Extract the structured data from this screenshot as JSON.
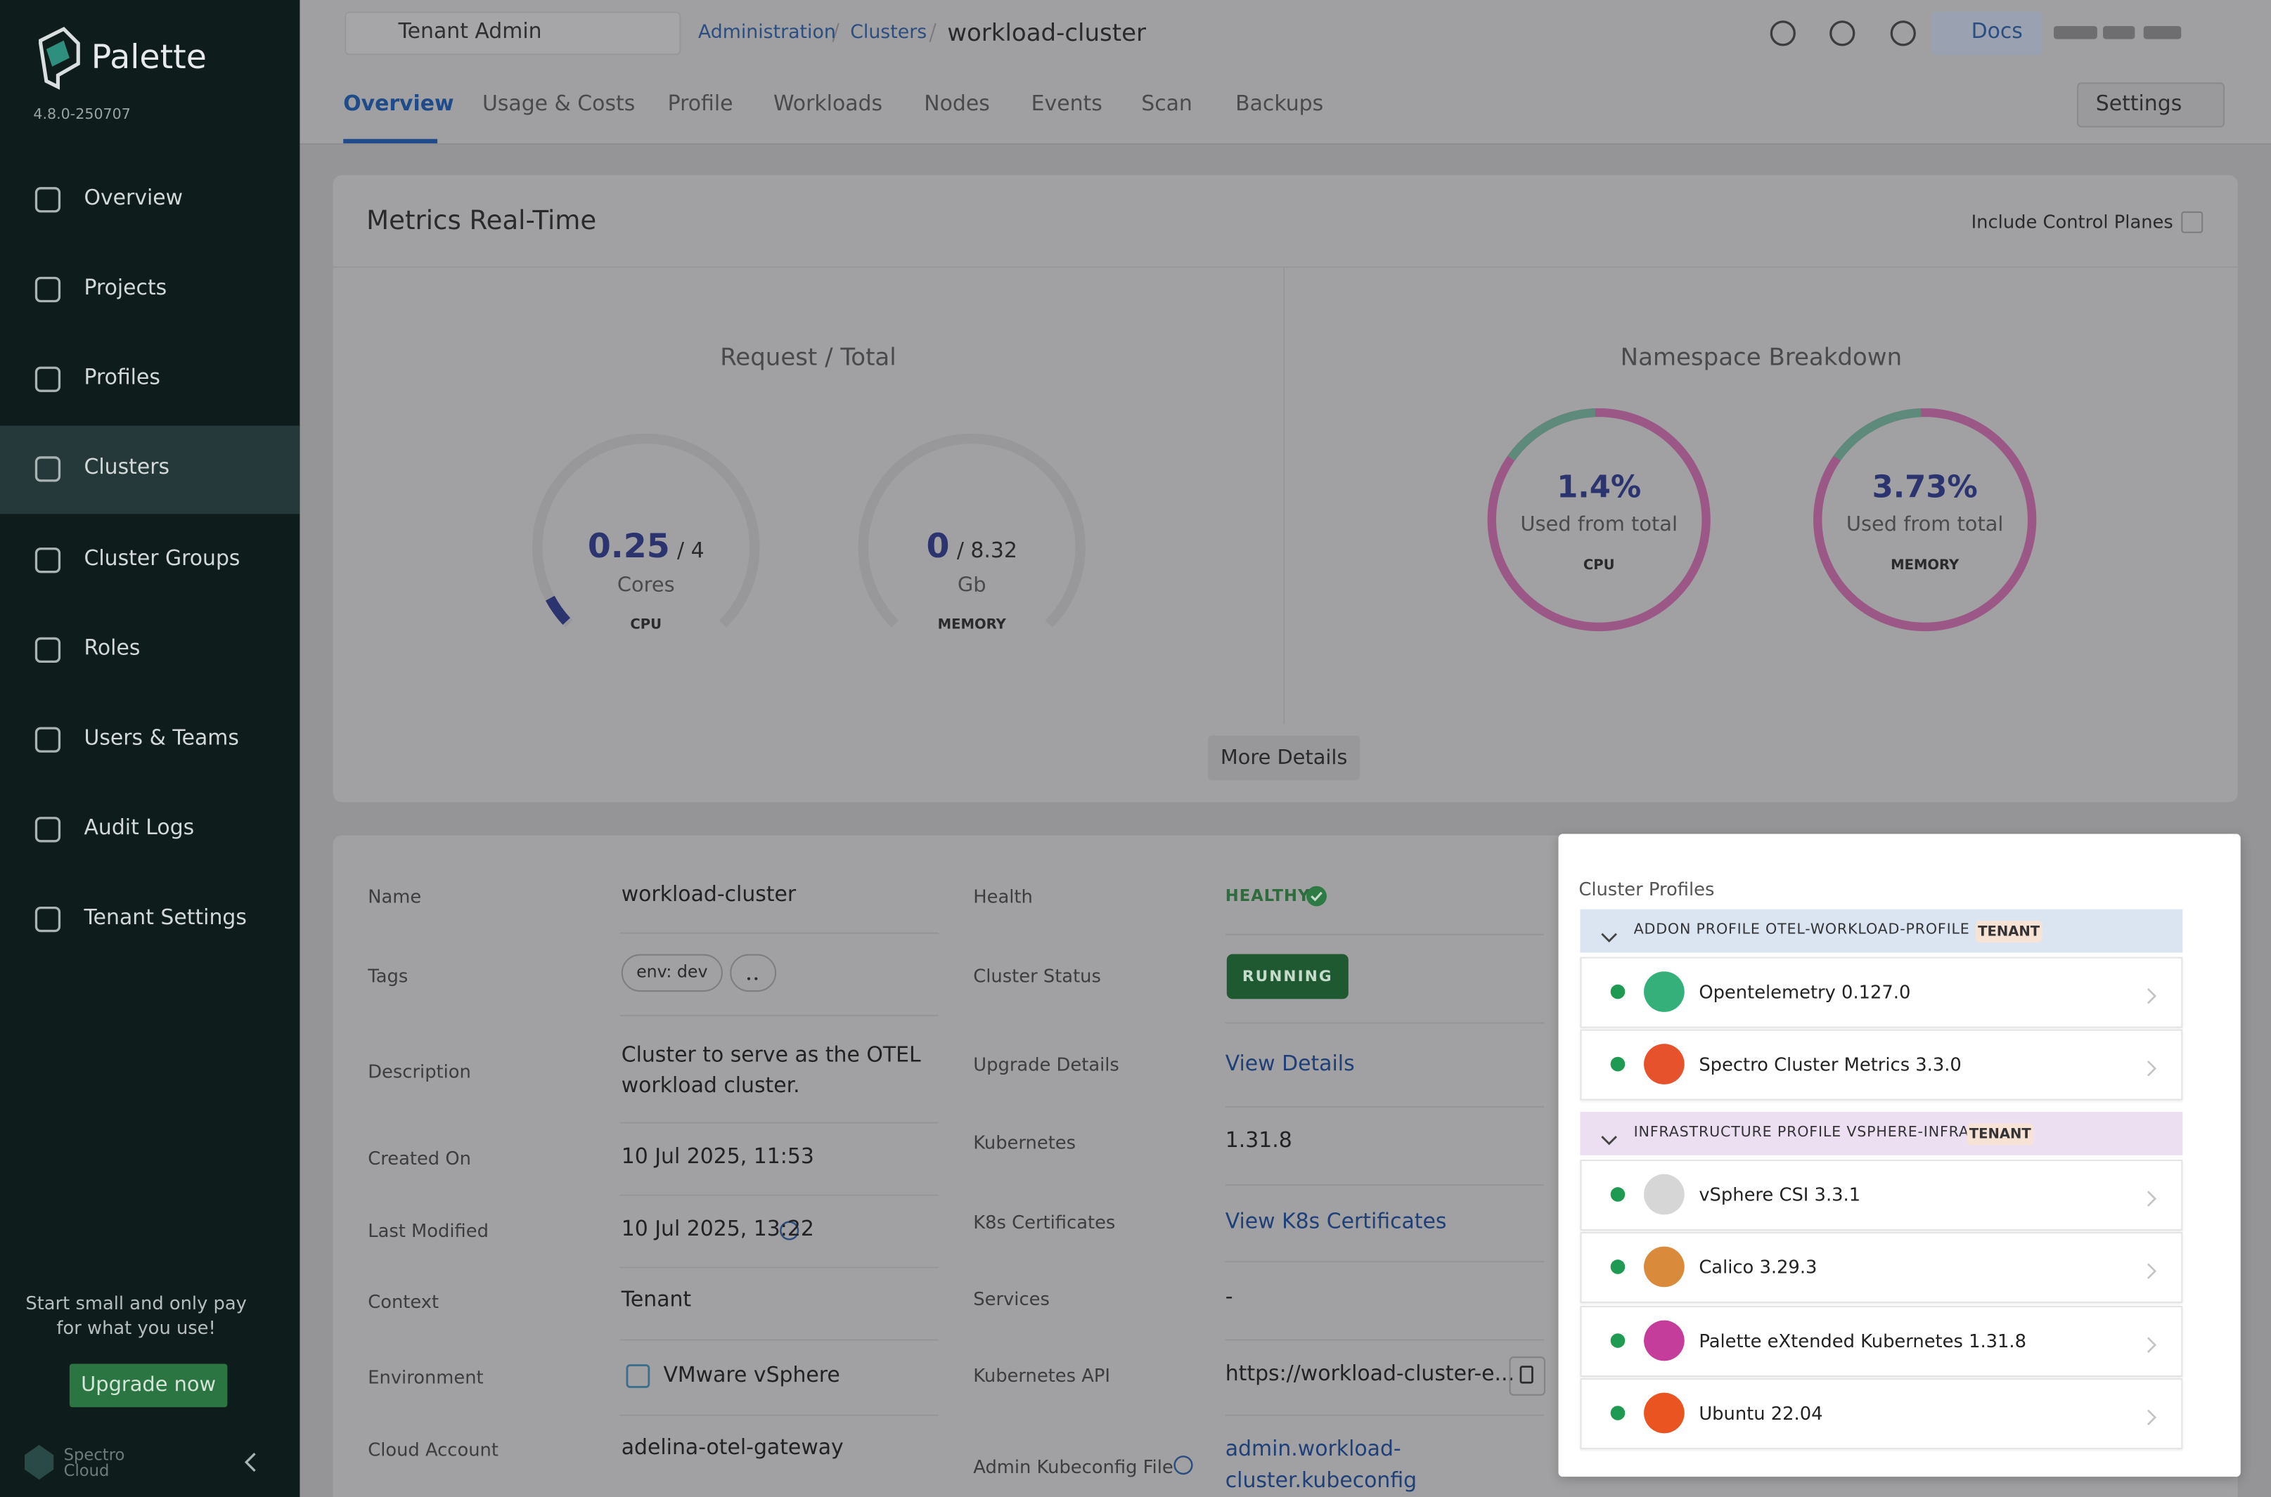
{
  "sidebar": {
    "brand": "Palette",
    "version": "4.8.0-250707",
    "nav": [
      "Overview",
      "Projects",
      "Profiles",
      "Clusters",
      "Cluster Groups",
      "Roles",
      "Users & Teams",
      "Audit Logs",
      "Tenant Settings"
    ],
    "promo": [
      "Start small and only pay",
      "for what you use!"
    ],
    "upgrade": "Upgrade now",
    "footer": [
      "Spectro",
      "Cloud"
    ]
  },
  "header": {
    "tenant": "Tenant Admin",
    "breadcrumb": [
      "Administration",
      "Clusters",
      "workload-cluster"
    ],
    "docs": "Docs",
    "tabs": [
      "Overview",
      "Usage & Costs",
      "Profile",
      "Workloads",
      "Nodes",
      "Events",
      "Scan",
      "Backups"
    ],
    "settings": "Settings"
  },
  "metrics": {
    "title": "Metrics Real-Time",
    "control_planes": "Include Control Planes",
    "request_title": "Request / Total",
    "gauges": [
      {
        "value": "0.25",
        "total": "/ 4",
        "unit": "Cores",
        "label": "CPU"
      },
      {
        "value": "0",
        "total": "/ 8.32",
        "unit": "Gb",
        "label": "MEMORY"
      }
    ],
    "namespace_title": "Namespace Breakdown",
    "donuts": [
      {
        "value": "1.4%",
        "text": "Used from total",
        "label": "CPU"
      },
      {
        "value": "3.73%",
        "text": "Used from total",
        "label": "MEMORY"
      }
    ],
    "more": "More Details"
  },
  "details": {
    "left": [
      {
        "label": "Name",
        "value": "workload-cluster"
      },
      {
        "label": "Tags",
        "tags": [
          "env: dev"
        ]
      },
      {
        "label": "Description",
        "value": [
          "Cluster to serve as the OTEL",
          "workload cluster."
        ]
      },
      {
        "label": "Created On",
        "value": "10 Jul 2025, 11:53"
      },
      {
        "label": "Last Modified",
        "value": "10 Jul 2025, 13:22"
      },
      {
        "label": "Context",
        "value": "Tenant"
      },
      {
        "label": "Environment",
        "value": "VMware vSphere"
      },
      {
        "label": "Cloud Account",
        "value": "adelina-otel-gateway"
      }
    ],
    "right": [
      {
        "label": "Health",
        "value": "HEALTHY"
      },
      {
        "label": "Cluster Status",
        "value": "RUNNING"
      },
      {
        "label": "Upgrade Details",
        "value": "View Details"
      },
      {
        "label": "Kubernetes",
        "value": "1.31.8"
      },
      {
        "label": "K8s Certificates",
        "value": "View K8s Certificates"
      },
      {
        "label": "Services",
        "value": "-"
      },
      {
        "label": "Kubernetes API",
        "value": "https://workload-cluster-e..."
      },
      {
        "label": "Admin Kubeconfig File",
        "value": [
          "admin.workload-",
          "cluster.kubeconfig"
        ]
      }
    ]
  },
  "profiles": {
    "title": "Cluster Profiles",
    "groups": [
      {
        "name": "ADDON PROFILE OTEL-WORKLOAD-PROFILE",
        "badge": "TENANT",
        "items": [
          "Opentelemetry 0.127.0",
          "Spectro Cluster Metrics 3.3.0"
        ]
      },
      {
        "name": "INFRASTRUCTURE PROFILE VSPHERE-INFRA",
        "badge": "TENANT",
        "items": [
          "vSphere CSI 3.3.1",
          "Calico 3.29.3",
          "Palette eXtended Kubernetes 1.31.8",
          "Ubuntu 22.04"
        ]
      }
    ]
  }
}
